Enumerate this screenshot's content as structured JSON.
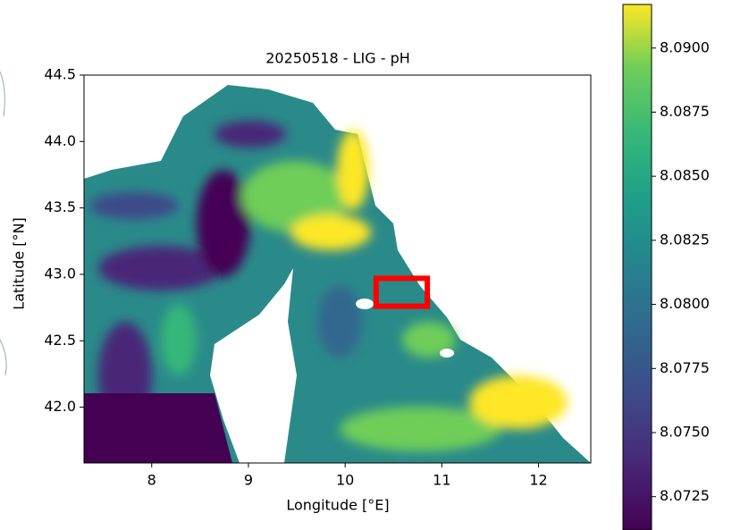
{
  "chart_data": {
    "type": "heatmap",
    "title": "20250518 - LIG - pH",
    "xlabel": "Longitude [°E]",
    "ylabel": "Latitude [°N]",
    "colormap": "viridis",
    "xlim": [
      7.3,
      12.54
    ],
    "xticks": [
      8,
      9,
      10,
      11,
      12
    ],
    "ylim": [
      41.58,
      44.5
    ],
    "yticks": [
      {
        "value": 42.0,
        "label": "42.0"
      },
      42.5,
      {
        "value": 43.0,
        "label": "43.0"
      },
      43.5,
      {
        "value": 44.0,
        "label": "44.0"
      },
      44.5
    ],
    "colorbar": {
      "lim": [
        8.0712,
        8.0917
      ],
      "ticks": [
        8.0725,
        {
          "value": 8.075,
          "label": "8.0750"
        },
        8.0775,
        {
          "value": 8.08,
          "label": "8.0800"
        },
        8.0825,
        {
          "value": 8.085,
          "label": "8.0850"
        },
        8.0875,
        {
          "value": 8.09,
          "label": "8.0900"
        }
      ]
    },
    "box": {
      "xlim": [
        10.32,
        10.85
      ],
      "ylim": [
        42.76,
        42.97
      ],
      "color": "#ff0000"
    }
  }
}
